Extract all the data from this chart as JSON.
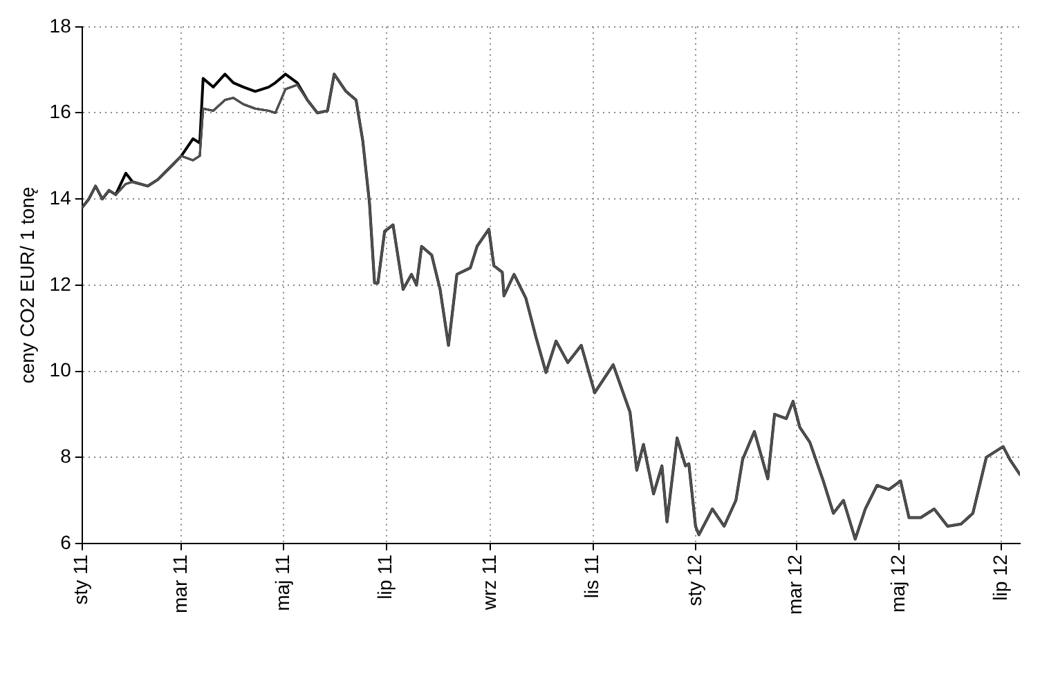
{
  "chart_data": {
    "type": "line",
    "ylabel": "ceny CO2 EUR/ 1 tonę",
    "x": [
      "2011-01-01",
      "2011-01-05",
      "2011-01-09",
      "2011-01-13",
      "2011-01-17",
      "2011-01-21",
      "2011-01-27",
      "2011-01-31",
      "2011-02-09",
      "2011-02-15",
      "2011-02-24",
      "2011-03-01",
      "2011-03-08",
      "2011-03-12",
      "2011-03-14",
      "2011-03-20",
      "2011-03-27",
      "2011-04-01",
      "2011-04-07",
      "2011-04-14",
      "2011-04-22",
      "2011-04-26",
      "2011-05-02",
      "2011-05-09",
      "2011-05-15",
      "2011-05-21",
      "2011-05-27",
      "2011-05-31",
      "2011-06-07",
      "2011-06-13",
      "2011-06-17",
      "2011-06-21",
      "2011-06-24",
      "2011-06-26",
      "2011-06-30",
      "2011-07-05",
      "2011-07-11",
      "2011-07-16",
      "2011-07-19",
      "2011-07-22",
      "2011-07-28",
      "2011-08-02",
      "2011-08-07",
      "2011-08-12",
      "2011-08-20",
      "2011-08-24",
      "2011-08-31",
      "2011-09-03",
      "2011-09-08",
      "2011-09-09",
      "2011-09-15",
      "2011-09-22",
      "2011-09-28",
      "2011-10-04",
      "2011-10-10",
      "2011-10-17",
      "2011-10-25",
      "2011-11-02",
      "2011-11-13",
      "2011-11-23",
      "2011-11-27",
      "2011-12-01",
      "2011-12-07",
      "2011-12-12",
      "2011-12-15",
      "2011-12-21",
      "2011-12-26",
      "2011-12-28",
      "2012-01-01",
      "2012-01-03",
      "2012-01-11",
      "2012-01-18",
      "2012-01-25",
      "2012-01-29",
      "2012-02-05",
      "2012-02-13",
      "2012-02-17",
      "2012-02-24",
      "2012-02-28",
      "2012-03-03",
      "2012-03-09",
      "2012-03-17",
      "2012-03-23",
      "2012-03-29",
      "2012-04-05",
      "2012-04-11",
      "2012-04-18",
      "2012-04-25",
      "2012-05-02",
      "2012-05-07",
      "2012-05-14",
      "2012-05-22",
      "2012-05-30",
      "2012-06-07",
      "2012-06-14",
      "2012-06-22",
      "2012-07-02",
      "2012-07-06",
      "2012-07-12"
    ],
    "series": [
      {
        "color": "#505050",
        "values": [
          13.8,
          14.0,
          14.3,
          14.0,
          14.2,
          14.1,
          14.35,
          14.4,
          14.3,
          14.45,
          14.8,
          15.0,
          14.9,
          15.0,
          16.1,
          16.05,
          16.3,
          16.35,
          16.2,
          16.1,
          16.05,
          16.0,
          16.55,
          16.65,
          16.3,
          16.0,
          16.05,
          16.9,
          16.5,
          16.3,
          15.35,
          13.9,
          12.05,
          12.05,
          13.25,
          13.4,
          11.9,
          12.25,
          12.0,
          12.9,
          12.7,
          11.9,
          10.6,
          12.25,
          12.4,
          12.9,
          13.3,
          12.45,
          12.3,
          11.75,
          12.25,
          11.7,
          10.8,
          9.97,
          10.7,
          10.2,
          10.6,
          9.5,
          10.15,
          9.05,
          7.7,
          8.3,
          7.15,
          7.8,
          6.5,
          8.45,
          7.8,
          7.85,
          6.4,
          6.2,
          6.8,
          6.4,
          7.0,
          7.95,
          8.6,
          7.5,
          9.0,
          8.9,
          9.3,
          8.7,
          8.35,
          7.45,
          6.7,
          7.0,
          6.1,
          6.8,
          7.35,
          7.25,
          7.45,
          6.6,
          6.6,
          6.8,
          6.4,
          6.45,
          6.7,
          8.0,
          8.25,
          7.95,
          7.6
        ]
      },
      {
        "color": "#000000",
        "values": [
          13.8,
          14.0,
          14.3,
          14.0,
          14.2,
          14.1,
          14.35,
          14.4,
          14.3,
          14.45,
          14.8,
          15.0,
          14.9,
          15.0,
          16.1,
          16.05,
          16.3,
          16.35,
          16.2,
          16.1,
          16.05,
          16.0,
          16.55,
          16.65,
          16.3,
          16.0,
          16.05,
          16.9,
          16.5,
          16.3,
          15.35,
          13.9,
          12.05,
          12.05,
          13.25,
          13.4,
          11.9,
          12.25,
          12.0,
          12.9,
          12.7,
          11.9,
          10.6,
          12.25,
          12.4,
          12.9,
          13.3,
          12.45,
          12.3,
          11.75,
          12.25,
          11.7,
          10.8,
          9.97,
          10.7,
          10.2,
          10.6,
          9.5,
          10.15,
          9.05,
          7.7,
          8.3,
          7.15,
          7.8,
          6.5,
          8.45,
          7.8,
          7.85,
          6.4,
          6.2,
          6.8,
          6.4,
          7.0,
          7.95,
          8.6,
          7.5,
          9.0,
          8.9,
          9.3,
          8.7,
          8.35,
          7.45,
          6.7,
          7.0,
          6.1,
          6.8,
          7.35,
          7.25,
          7.45,
          6.6,
          6.6,
          6.8,
          6.4,
          6.45,
          6.7,
          8.0,
          8.25,
          7.95,
          7.6
        ]
      },
      {
        "color": "#999999",
        "values": [
          13.8,
          14.0,
          14.3,
          14.0,
          14.2,
          14.1,
          14.35,
          14.4,
          14.3,
          14.45,
          14.8,
          15.0,
          14.9,
          15.0,
          16.1,
          16.05,
          16.3,
          16.35,
          16.2,
          16.1,
          16.05,
          16.0,
          16.55,
          16.65,
          16.3,
          16.0,
          16.05,
          16.9,
          16.5,
          16.3,
          15.35,
          13.9,
          12.05,
          12.05,
          13.25,
          13.4,
          11.9,
          12.25,
          12.0,
          12.9,
          12.7,
          11.9,
          10.6,
          12.25,
          12.4,
          12.9,
          13.3,
          12.45,
          12.3,
          11.75,
          12.25,
          11.7,
          10.8,
          9.97,
          10.7,
          10.2,
          10.6,
          9.5,
          10.15,
          9.05,
          7.7,
          8.3,
          7.15,
          7.8,
          6.5,
          8.45,
          7.8,
          7.85,
          6.4,
          6.2,
          6.8,
          6.4,
          7.0,
          7.95,
          8.6,
          7.5,
          9.0,
          8.9,
          9.3,
          8.7,
          8.35,
          7.45,
          6.7,
          7.0,
          6.1,
          6.8,
          7.35,
          7.25,
          7.45,
          6.6,
          6.6,
          6.8,
          6.4,
          6.45,
          6.7,
          8.0,
          8.25,
          7.95,
          7.6
        ]
      },
      {
        "color": "#000000",
        "values": [
          13.8,
          14.0,
          14.3,
          14.0,
          14.2,
          14.1,
          14.6,
          14.4,
          14.3,
          14.45,
          14.8,
          15.0,
          15.4,
          15.3,
          16.8,
          16.6,
          16.9,
          16.7,
          16.6,
          16.5,
          16.6,
          16.7,
          16.9,
          16.7,
          16.3,
          16.0,
          16.05,
          16.9,
          16.5,
          16.3,
          15.35,
          13.9,
          12.05,
          12.05,
          13.25,
          13.4,
          11.9,
          12.25,
          12.0,
          12.9,
          12.7,
          11.9,
          10.6,
          12.25,
          12.4,
          12.9,
          13.3,
          12.45,
          12.3,
          11.75,
          12.25,
          11.7,
          10.8,
          9.97,
          10.7,
          10.2,
          10.6,
          9.5,
          10.15,
          9.05,
          7.7,
          8.3,
          7.15,
          7.8,
          6.5,
          8.45,
          7.8,
          7.85,
          6.4,
          6.2,
          6.8,
          6.4,
          7.0,
          7.95,
          8.6,
          7.5,
          9.0,
          8.9,
          9.3,
          8.7,
          8.35,
          7.45,
          6.7,
          7.0,
          6.1,
          6.8,
          7.35,
          7.25,
          7.45,
          6.6,
          6.6,
          6.8,
          6.4,
          6.45,
          6.7,
          8.0,
          8.25,
          7.95,
          7.6
        ]
      }
    ],
    "xlim": [
      "2011-01-01",
      "2012-07-12"
    ],
    "xticks": [
      {
        "value": "2011-01-01",
        "label": "sty 11"
      },
      {
        "value": "2011-03-01",
        "label": "mar 11"
      },
      {
        "value": "2011-05-01",
        "label": "maj 11"
      },
      {
        "value": "2011-07-01",
        "label": "lip 11"
      },
      {
        "value": "2011-09-01",
        "label": "wrz 11"
      },
      {
        "value": "2011-11-01",
        "label": "lis 11"
      },
      {
        "value": "2012-01-01",
        "label": "sty 12"
      },
      {
        "value": "2012-03-01",
        "label": "mar 12"
      },
      {
        "value": "2012-05-01",
        "label": "maj 12"
      },
      {
        "value": "2012-07-01",
        "label": "lip 12"
      }
    ],
    "ylim": [
      6,
      18
    ],
    "yticks": [
      6,
      8,
      10,
      12,
      14,
      16,
      18
    ],
    "grid": true,
    "legend": false,
    "marker": "none",
    "line_style": "solid"
  }
}
